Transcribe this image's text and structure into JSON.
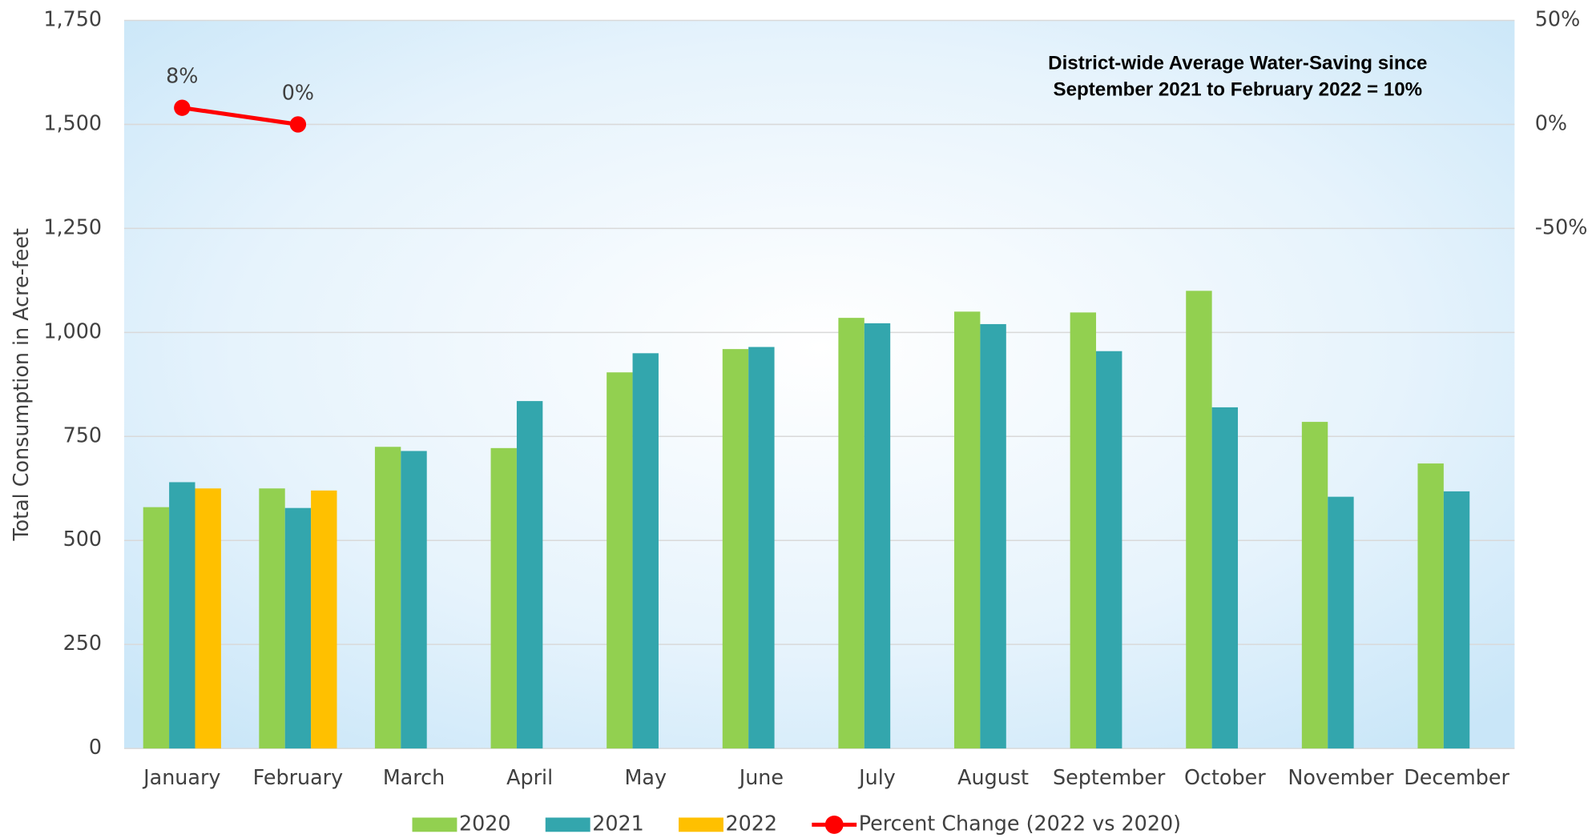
{
  "chart_data": {
    "type": "bar",
    "y_label": "Total Consumption in Acre-feet",
    "annotation": [
      "District-wide Average Water-Saving since",
      "September 2021 to February 2022 = 10%"
    ],
    "categories": [
      "January",
      "February",
      "March",
      "April",
      "May",
      "June",
      "July",
      "August",
      "September",
      "October",
      "November",
      "December"
    ],
    "series": [
      {
        "name": "2020",
        "color": "#92d050",
        "values": [
          580,
          625,
          725,
          722,
          904,
          960,
          1035,
          1050,
          1048,
          1100,
          785,
          685
        ]
      },
      {
        "name": "2021",
        "color": "#33a6ad",
        "values": [
          640,
          578,
          715,
          835,
          950,
          965,
          1022,
          1020,
          955,
          820,
          605,
          618
        ]
      },
      {
        "name": "2022",
        "color": "#ffc000",
        "values": [
          625,
          620,
          null,
          null,
          null,
          null,
          null,
          null,
          null,
          null,
          null,
          null
        ]
      },
      {
        "name": "Percent Change (2022 vs 2020)",
        "color": "#ff0000",
        "type": "line",
        "axis": "y2",
        "values": [
          8,
          0,
          null,
          null,
          null,
          null,
          null,
          null,
          null,
          null,
          null,
          null
        ],
        "value_labels": [
          "8%",
          "0%",
          null,
          null,
          null,
          null,
          null,
          null,
          null,
          null,
          null,
          null
        ]
      }
    ],
    "ylim": [
      0,
      1750
    ],
    "yticks": [
      0,
      250,
      500,
      750,
      {
        "value": 1000,
        "label": "1,000"
      },
      {
        "value": 1250,
        "label": "1,250"
      },
      {
        "value": 1500,
        "label": "1,500"
      },
      {
        "value": 1750,
        "label": "1,750"
      }
    ],
    "y2lim": [
      -300,
      50
    ],
    "y2ticks": [
      {
        "value": -50,
        "label": "-50%"
      },
      {
        "value": 0,
        "label": "0%"
      },
      {
        "value": 50,
        "label": "50%"
      }
    ],
    "grid": true
  }
}
